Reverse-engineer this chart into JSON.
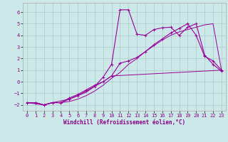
{
  "xlabel": "Windchill (Refroidissement éolien,°C)",
  "bg_color": "#cce8e8",
  "grid_color": "#aacccc",
  "line_color": "#990099",
  "xlim": [
    -0.5,
    23.5
  ],
  "ylim": [
    -2.5,
    6.8
  ],
  "xticks": [
    0,
    1,
    2,
    3,
    4,
    5,
    6,
    7,
    8,
    9,
    10,
    11,
    12,
    13,
    14,
    15,
    16,
    17,
    18,
    19,
    20,
    21,
    22,
    23
  ],
  "yticks": [
    -2,
    -1,
    0,
    1,
    2,
    3,
    4,
    5,
    6
  ],
  "line1_x": [
    0,
    1,
    2,
    3,
    4,
    5,
    6,
    7,
    8,
    9,
    10,
    11,
    12,
    13,
    14,
    15,
    16,
    17,
    18,
    19,
    20,
    21,
    22,
    23
  ],
  "line1_y": [
    -1.8,
    -1.8,
    -2.0,
    -1.8,
    -1.8,
    -1.7,
    -1.5,
    -1.2,
    -0.8,
    -0.3,
    0.3,
    0.8,
    1.5,
    2.0,
    2.6,
    3.1,
    3.6,
    4.0,
    4.3,
    4.5,
    4.7,
    4.9,
    5.0,
    1.0
  ],
  "line2_x": [
    0,
    1,
    2,
    3,
    4,
    5,
    6,
    7,
    8,
    9,
    10,
    11,
    12,
    13,
    14,
    15,
    16,
    17,
    18,
    19,
    20,
    21,
    22,
    23
  ],
  "line2_y": [
    -1.8,
    -1.8,
    -2.0,
    -1.8,
    -1.8,
    -1.5,
    -1.2,
    -0.8,
    -0.4,
    0.4,
    1.5,
    6.2,
    6.2,
    4.1,
    4.0,
    4.5,
    4.65,
    4.7,
    4.0,
    4.7,
    5.0,
    2.3,
    1.5,
    0.9
  ],
  "line3_x": [
    0,
    1,
    2,
    3,
    4,
    5,
    6,
    7,
    8,
    9,
    10,
    11,
    12,
    13,
    14,
    15,
    16,
    17,
    18,
    19,
    20,
    21,
    22,
    23
  ],
  "line3_y": [
    -1.8,
    -1.8,
    -2.0,
    -1.8,
    -1.8,
    -1.4,
    -1.1,
    -0.7,
    -0.3,
    0.0,
    0.5,
    1.6,
    1.8,
    2.1,
    2.6,
    3.2,
    3.7,
    4.2,
    4.6,
    5.0,
    4.0,
    2.2,
    1.8,
    1.0
  ],
  "line4_x": [
    0,
    2,
    3,
    5,
    6,
    7,
    8,
    9,
    10,
    23
  ],
  "line4_y": [
    -1.8,
    -2.0,
    -1.8,
    -1.5,
    -1.2,
    -0.9,
    -0.4,
    0.0,
    0.5,
    1.0
  ]
}
